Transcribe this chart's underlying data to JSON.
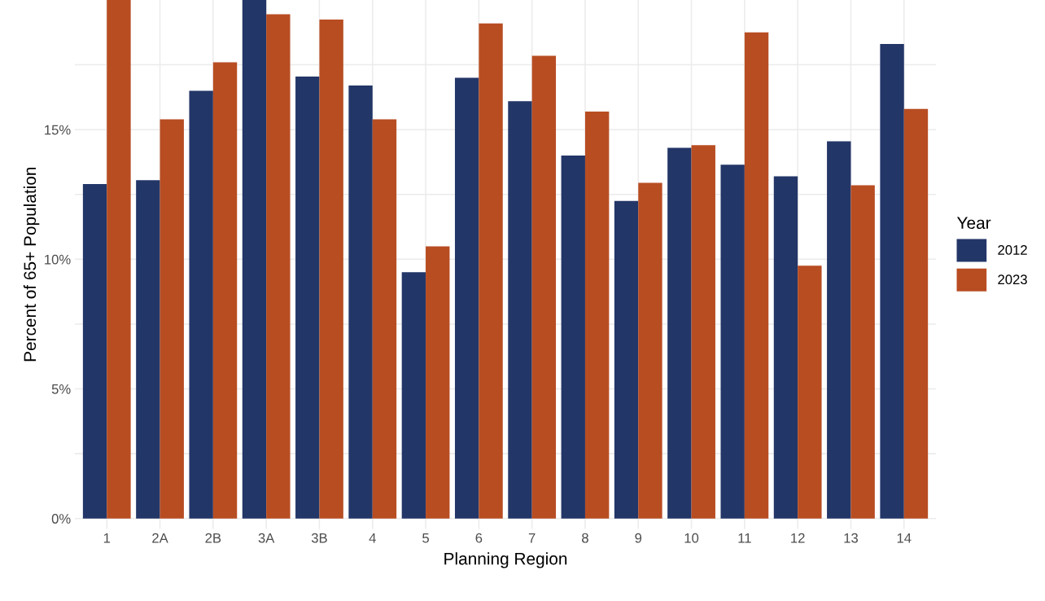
{
  "chart_data": {
    "type": "bar",
    "xlabel": "Planning Region",
    "ylabel": "Percent of 65+ Population",
    "legend_title": "Year",
    "categories": [
      "1",
      "2A",
      "2B",
      "3A",
      "3B",
      "4",
      "5",
      "6",
      "7",
      "8",
      "9",
      "10",
      "11",
      "12",
      "13",
      "14"
    ],
    "series": [
      {
        "name": "2012",
        "color": "#233668",
        "values": [
          12.9,
          13.05,
          16.5,
          20,
          17.05,
          16.7,
          9.5,
          17.0,
          16.1,
          14.0,
          12.25,
          14.3,
          13.65,
          13.2,
          14.55,
          18.3
        ]
      },
      {
        "name": "2023",
        "color": "#b84d22",
        "values": [
          20,
          15.4,
          17.6,
          19.45,
          19.25,
          15.4,
          10.5,
          19.1,
          17.85,
          15.7,
          12.95,
          14.4,
          18.75,
          9.75,
          12.85,
          15.8
        ]
      }
    ],
    "ylim": [
      -0.4,
      20
    ],
    "yticks": [
      {
        "value": 0,
        "label": "0%"
      },
      {
        "value": 2.5,
        "label": null
      },
      {
        "value": 5,
        "label": "5%"
      },
      {
        "value": 7.5,
        "label": null
      },
      {
        "value": 10,
        "label": "10%"
      },
      {
        "value": 12.5,
        "label": null
      },
      {
        "value": 15,
        "label": "15%"
      },
      {
        "value": 17.5,
        "label": null
      }
    ],
    "grid": true,
    "legend": "right"
  }
}
